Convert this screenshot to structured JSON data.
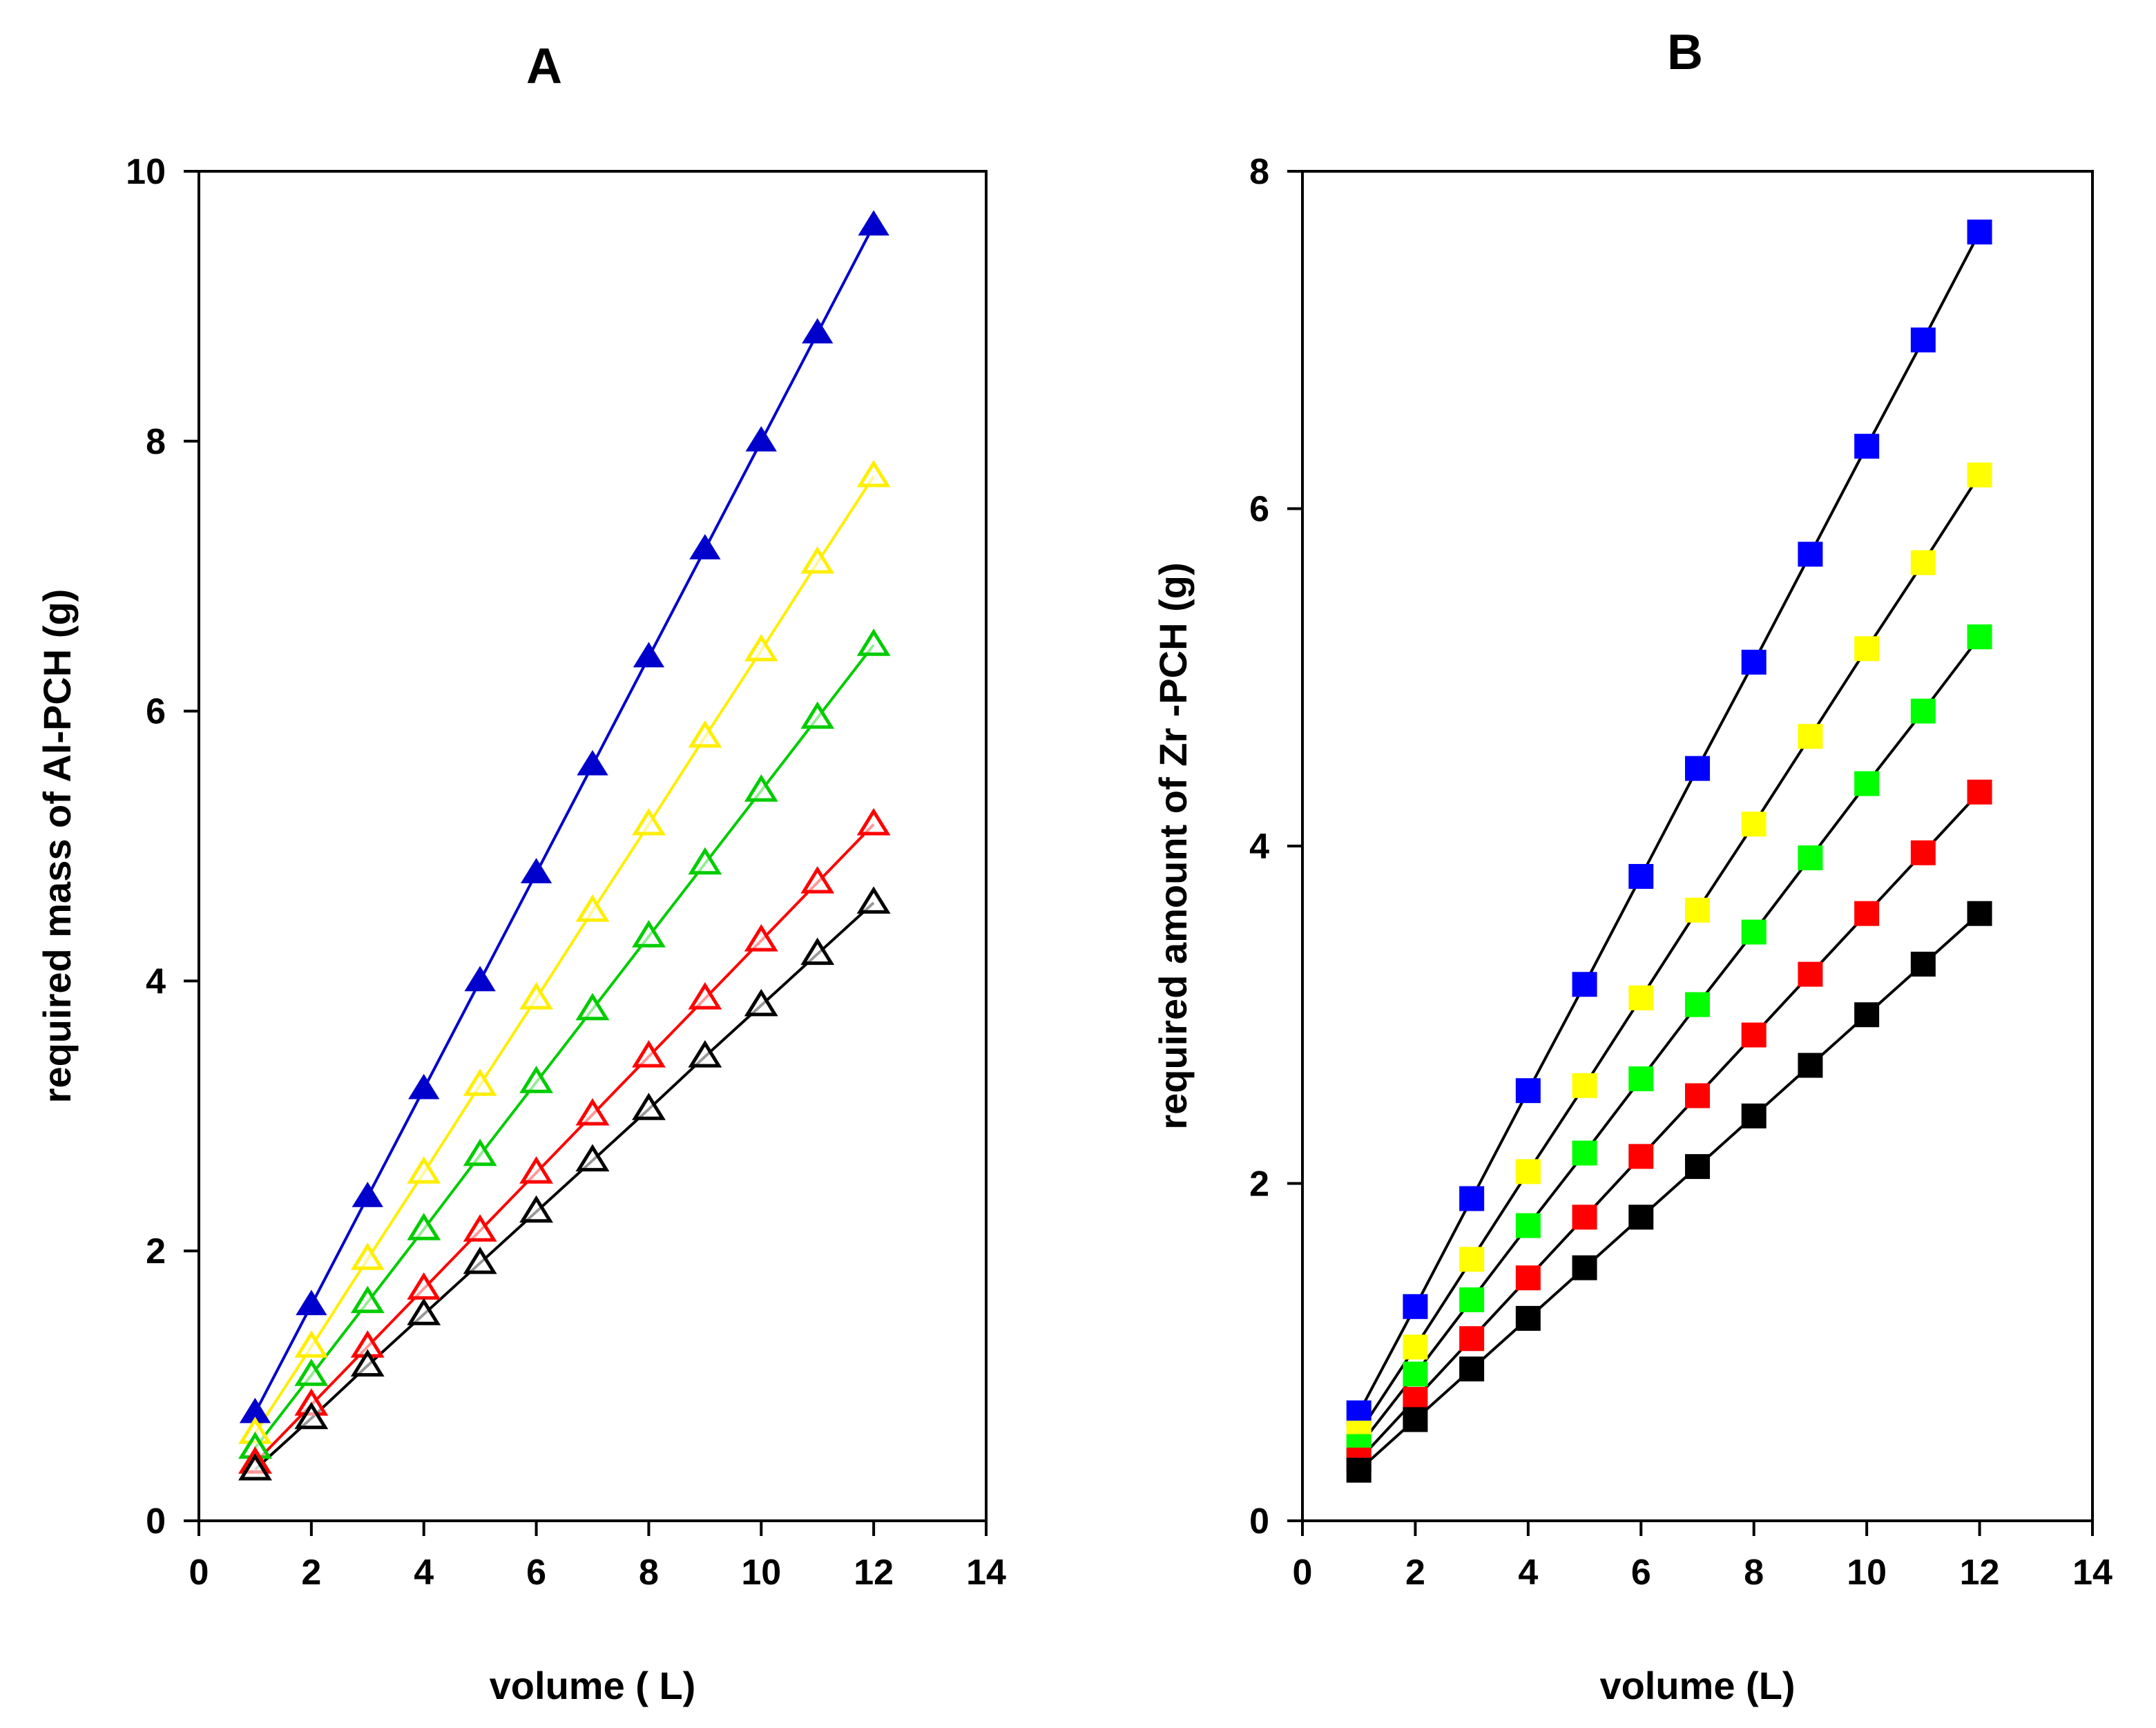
{
  "chart_data": [
    {
      "id": "A",
      "type": "line",
      "title": "A",
      "xlabel": "volume ( L)",
      "ylabel": "required mass of Al-PCH (g)",
      "xlim": [
        0,
        14
      ],
      "ylim": [
        0,
        10
      ],
      "xticks": [
        0,
        2,
        4,
        6,
        8,
        10,
        12,
        14
      ],
      "yticks": [
        0,
        2,
        4,
        6,
        8,
        10
      ],
      "marker": "triangle",
      "grid": false,
      "legend": "none",
      "x": [
        1,
        2,
        3,
        4,
        5,
        6,
        7,
        8,
        9,
        10,
        11,
        12
      ],
      "series": [
        {
          "color": "#0000cc",
          "marker_fill": "filled",
          "values": [
            0.8,
            1.6,
            2.4,
            3.2,
            4.0,
            4.8,
            5.6,
            6.4,
            7.2,
            8.0,
            8.8,
            9.6
          ]
        },
        {
          "color": "#ffee00",
          "marker_fill": "hollow",
          "values": [
            0.65,
            1.29,
            1.94,
            2.58,
            3.23,
            3.87,
            4.52,
            5.16,
            5.81,
            6.45,
            7.1,
            7.74
          ]
        },
        {
          "color": "#00cc00",
          "marker_fill": "hollow",
          "values": [
            0.54,
            1.08,
            1.62,
            2.16,
            2.71,
            3.25,
            3.79,
            4.33,
            4.87,
            5.41,
            5.95,
            6.49
          ]
        },
        {
          "color": "#ff0000",
          "marker_fill": "hollow",
          "values": [
            0.43,
            0.86,
            1.29,
            1.72,
            2.15,
            2.58,
            3.01,
            3.44,
            3.87,
            4.3,
            4.73,
            5.16
          ]
        },
        {
          "color": "#000000",
          "marker_fill": "hollow",
          "values": [
            0.38,
            0.76,
            1.15,
            1.53,
            1.91,
            2.29,
            2.67,
            3.05,
            3.44,
            3.82,
            4.2,
            4.58
          ]
        }
      ]
    },
    {
      "id": "B",
      "type": "line",
      "title": "B",
      "xlabel": "volume (L)",
      "ylabel": "required amount of Zr -PCH (g)",
      "xlim": [
        0,
        14
      ],
      "ylim": [
        0,
        8
      ],
      "xticks": [
        0,
        2,
        4,
        6,
        8,
        10,
        12,
        14
      ],
      "yticks": [
        0,
        2,
        4,
        6,
        8
      ],
      "marker": "square",
      "grid": false,
      "legend": "none",
      "line_color": "#000000",
      "x": [
        1,
        2,
        3,
        4,
        5,
        6,
        7,
        8,
        9,
        10,
        11,
        12
      ],
      "series": [
        {
          "color": "#0000ff",
          "values": [
            0.64,
            1.27,
            1.91,
            2.55,
            3.18,
            3.82,
            4.46,
            5.09,
            5.73,
            6.37,
            7.0,
            7.64
          ]
        },
        {
          "color": "#ffff00",
          "values": [
            0.52,
            1.03,
            1.55,
            2.07,
            2.58,
            3.1,
            3.62,
            4.13,
            4.65,
            5.17,
            5.68,
            6.2
          ]
        },
        {
          "color": "#00ff00",
          "values": [
            0.44,
            0.87,
            1.31,
            1.75,
            2.18,
            2.62,
            3.06,
            3.49,
            3.93,
            4.37,
            4.8,
            5.24
          ]
        },
        {
          "color": "#ff0000",
          "values": [
            0.36,
            0.72,
            1.08,
            1.44,
            1.8,
            2.16,
            2.52,
            2.88,
            3.24,
            3.6,
            3.96,
            4.32
          ]
        },
        {
          "color": "#000000",
          "values": [
            0.3,
            0.6,
            0.9,
            1.2,
            1.5,
            1.8,
            2.1,
            2.4,
            2.7,
            3.0,
            3.3,
            3.6
          ]
        }
      ]
    }
  ]
}
